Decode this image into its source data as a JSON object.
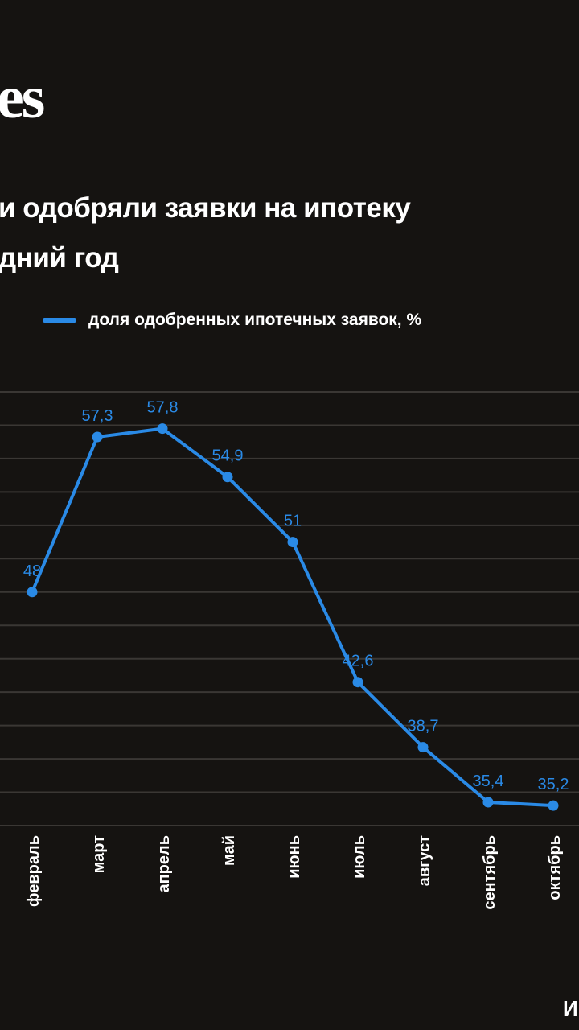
{
  "logo_text": "es",
  "title_lines": [
    "и одобряли заявки на ипотеку",
    "дний год"
  ],
  "source_fragment": "И",
  "chart_data": {
    "type": "line",
    "title": "и одобряли заявки на ипотеку дний год",
    "categories": [
      "февраль",
      "март",
      "апрель",
      "май",
      "июнь",
      "июль",
      "август",
      "сентябрь",
      "октябрь"
    ],
    "series": [
      {
        "name": "доля одобренных ипотечных заявок, %",
        "values": [
          48,
          57.3,
          57.8,
          54.9,
          51,
          42.6,
          38.7,
          35.4,
          35.2
        ],
        "labels": [
          "48",
          "57,3",
          "57,8",
          "54,9",
          "51",
          "42,6",
          "38,7",
          "35,4",
          "35,2"
        ],
        "color": "#2a8ae6"
      }
    ],
    "ylim": [
      34,
      60
    ],
    "grid_step": 2,
    "grid": true,
    "legend_position": "top"
  }
}
